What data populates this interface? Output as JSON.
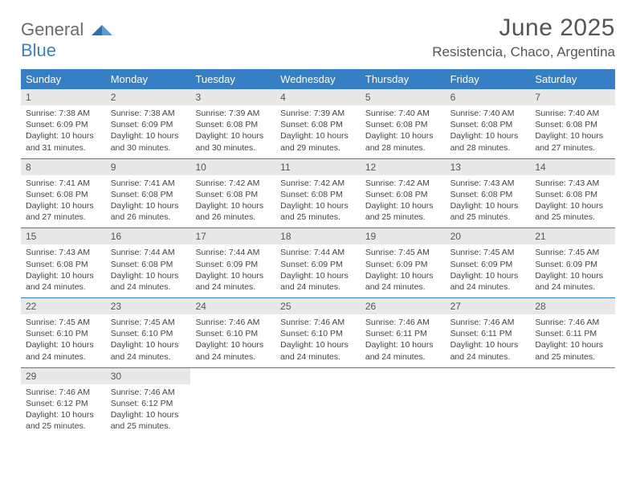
{
  "brand": {
    "general": "General",
    "blue": "Blue"
  },
  "header": {
    "month_title": "June 2025",
    "location": "Resistencia, Chaco, Argentina"
  },
  "calendar": {
    "accent_color": "#377fc4",
    "daynum_bg": "#e8e8e8",
    "text_color": "#444",
    "day_names": [
      "Sunday",
      "Monday",
      "Tuesday",
      "Wednesday",
      "Thursday",
      "Friday",
      "Saturday"
    ],
    "weeks": [
      [
        {
          "day": 1,
          "sunrise": "7:38 AM",
          "sunset": "6:09 PM",
          "daylight": "10 hours and 31 minutes."
        },
        {
          "day": 2,
          "sunrise": "7:38 AM",
          "sunset": "6:09 PM",
          "daylight": "10 hours and 30 minutes."
        },
        {
          "day": 3,
          "sunrise": "7:39 AM",
          "sunset": "6:08 PM",
          "daylight": "10 hours and 30 minutes."
        },
        {
          "day": 4,
          "sunrise": "7:39 AM",
          "sunset": "6:08 PM",
          "daylight": "10 hours and 29 minutes."
        },
        {
          "day": 5,
          "sunrise": "7:40 AM",
          "sunset": "6:08 PM",
          "daylight": "10 hours and 28 minutes."
        },
        {
          "day": 6,
          "sunrise": "7:40 AM",
          "sunset": "6:08 PM",
          "daylight": "10 hours and 28 minutes."
        },
        {
          "day": 7,
          "sunrise": "7:40 AM",
          "sunset": "6:08 PM",
          "daylight": "10 hours and 27 minutes."
        }
      ],
      [
        {
          "day": 8,
          "sunrise": "7:41 AM",
          "sunset": "6:08 PM",
          "daylight": "10 hours and 27 minutes."
        },
        {
          "day": 9,
          "sunrise": "7:41 AM",
          "sunset": "6:08 PM",
          "daylight": "10 hours and 26 minutes."
        },
        {
          "day": 10,
          "sunrise": "7:42 AM",
          "sunset": "6:08 PM",
          "daylight": "10 hours and 26 minutes."
        },
        {
          "day": 11,
          "sunrise": "7:42 AM",
          "sunset": "6:08 PM",
          "daylight": "10 hours and 25 minutes."
        },
        {
          "day": 12,
          "sunrise": "7:42 AM",
          "sunset": "6:08 PM",
          "daylight": "10 hours and 25 minutes."
        },
        {
          "day": 13,
          "sunrise": "7:43 AM",
          "sunset": "6:08 PM",
          "daylight": "10 hours and 25 minutes."
        },
        {
          "day": 14,
          "sunrise": "7:43 AM",
          "sunset": "6:08 PM",
          "daylight": "10 hours and 25 minutes."
        }
      ],
      [
        {
          "day": 15,
          "sunrise": "7:43 AM",
          "sunset": "6:08 PM",
          "daylight": "10 hours and 24 minutes."
        },
        {
          "day": 16,
          "sunrise": "7:44 AM",
          "sunset": "6:08 PM",
          "daylight": "10 hours and 24 minutes."
        },
        {
          "day": 17,
          "sunrise": "7:44 AM",
          "sunset": "6:09 PM",
          "daylight": "10 hours and 24 minutes."
        },
        {
          "day": 18,
          "sunrise": "7:44 AM",
          "sunset": "6:09 PM",
          "daylight": "10 hours and 24 minutes."
        },
        {
          "day": 19,
          "sunrise": "7:45 AM",
          "sunset": "6:09 PM",
          "daylight": "10 hours and 24 minutes."
        },
        {
          "day": 20,
          "sunrise": "7:45 AM",
          "sunset": "6:09 PM",
          "daylight": "10 hours and 24 minutes."
        },
        {
          "day": 21,
          "sunrise": "7:45 AM",
          "sunset": "6:09 PM",
          "daylight": "10 hours and 24 minutes."
        }
      ],
      [
        {
          "day": 22,
          "sunrise": "7:45 AM",
          "sunset": "6:10 PM",
          "daylight": "10 hours and 24 minutes."
        },
        {
          "day": 23,
          "sunrise": "7:45 AM",
          "sunset": "6:10 PM",
          "daylight": "10 hours and 24 minutes."
        },
        {
          "day": 24,
          "sunrise": "7:46 AM",
          "sunset": "6:10 PM",
          "daylight": "10 hours and 24 minutes."
        },
        {
          "day": 25,
          "sunrise": "7:46 AM",
          "sunset": "6:10 PM",
          "daylight": "10 hours and 24 minutes."
        },
        {
          "day": 26,
          "sunrise": "7:46 AM",
          "sunset": "6:11 PM",
          "daylight": "10 hours and 24 minutes."
        },
        {
          "day": 27,
          "sunrise": "7:46 AM",
          "sunset": "6:11 PM",
          "daylight": "10 hours and 24 minutes."
        },
        {
          "day": 28,
          "sunrise": "7:46 AM",
          "sunset": "6:11 PM",
          "daylight": "10 hours and 25 minutes."
        }
      ],
      [
        {
          "day": 29,
          "sunrise": "7:46 AM",
          "sunset": "6:12 PM",
          "daylight": "10 hours and 25 minutes."
        },
        {
          "day": 30,
          "sunrise": "7:46 AM",
          "sunset": "6:12 PM",
          "daylight": "10 hours and 25 minutes."
        },
        null,
        null,
        null,
        null,
        null
      ]
    ],
    "labels": {
      "sunrise_prefix": "Sunrise: ",
      "sunset_prefix": "Sunset: ",
      "daylight_prefix": "Daylight: "
    }
  }
}
